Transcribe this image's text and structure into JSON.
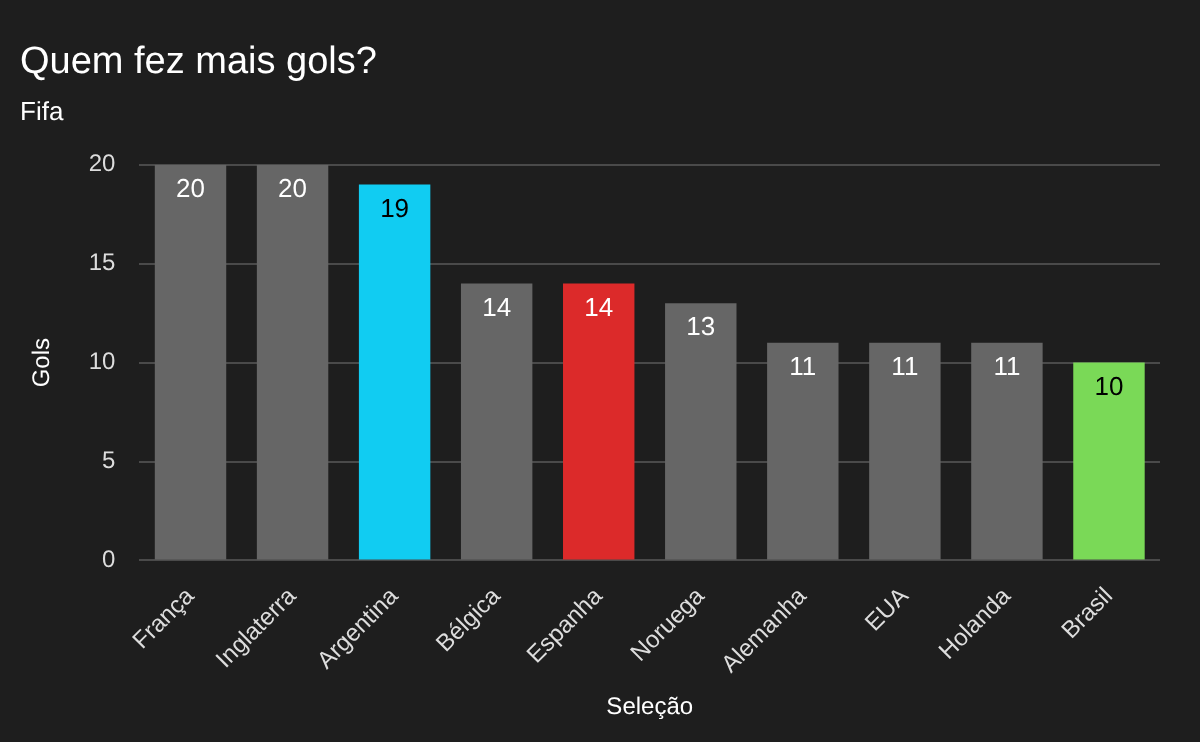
{
  "chart_data": {
    "type": "bar",
    "title": "Quem fez mais gols?",
    "subtitle": "Fifa",
    "xlabel": "Seleção",
    "ylabel": "Gols",
    "categories": [
      "França",
      "Inglaterra",
      "Argentina",
      "Bélgica",
      "Espanha",
      "Noruega",
      "Alemanha",
      "EUA",
      "Holanda",
      "Brasil"
    ],
    "values": [
      20,
      20,
      19,
      14,
      14,
      13,
      11,
      11,
      11,
      10
    ],
    "colors": [
      "#666666",
      "#666666",
      "#11ccf2",
      "#666666",
      "#dc2a2a",
      "#666666",
      "#666666",
      "#666666",
      "#666666",
      "#7ad957"
    ],
    "ylim": [
      0,
      20
    ],
    "yticks": [
      0,
      5,
      10,
      15,
      20
    ],
    "grid": "y",
    "data_labels": true,
    "legend": false
  }
}
